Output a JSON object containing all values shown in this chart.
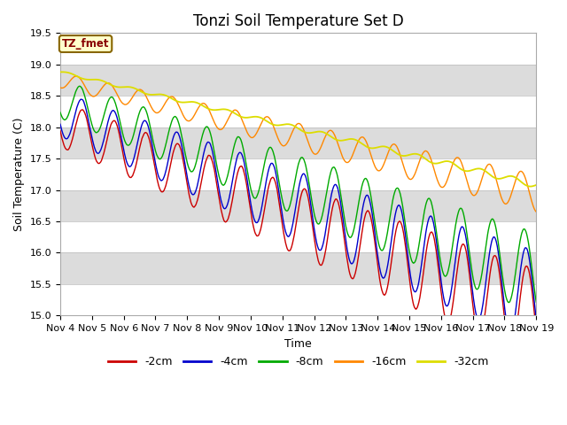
{
  "title": "Tonzi Soil Temperature Set D",
  "ylabel": "Soil Temperature (C)",
  "xlabel": "Time",
  "ylim": [
    15.0,
    19.5
  ],
  "label_box_text": "TZ_fmet",
  "legend_labels": [
    "-2cm",
    "-4cm",
    "-8cm",
    "-16cm",
    "-32cm"
  ],
  "line_colors": [
    "#cc0000",
    "#0000cc",
    "#00aa00",
    "#ff8800",
    "#dddd00"
  ],
  "x_tick_labels": [
    "Nov 4",
    "Nov 5",
    "Nov 6",
    "Nov 7",
    "Nov 8",
    "Nov 9",
    "Nov 10",
    "Nov 11",
    "Nov 12",
    "Nov 13",
    "Nov 14",
    "Nov 15",
    "Nov 16",
    "Nov 17",
    "Nov 18",
    "Nov 19"
  ],
  "band_color": "#dcdcdc",
  "background_color": "#dcdcdc",
  "title_fontsize": 12,
  "axis_label_fontsize": 9,
  "tick_fontsize": 8,
  "figsize": [
    6.4,
    4.8
  ],
  "dpi": 100
}
